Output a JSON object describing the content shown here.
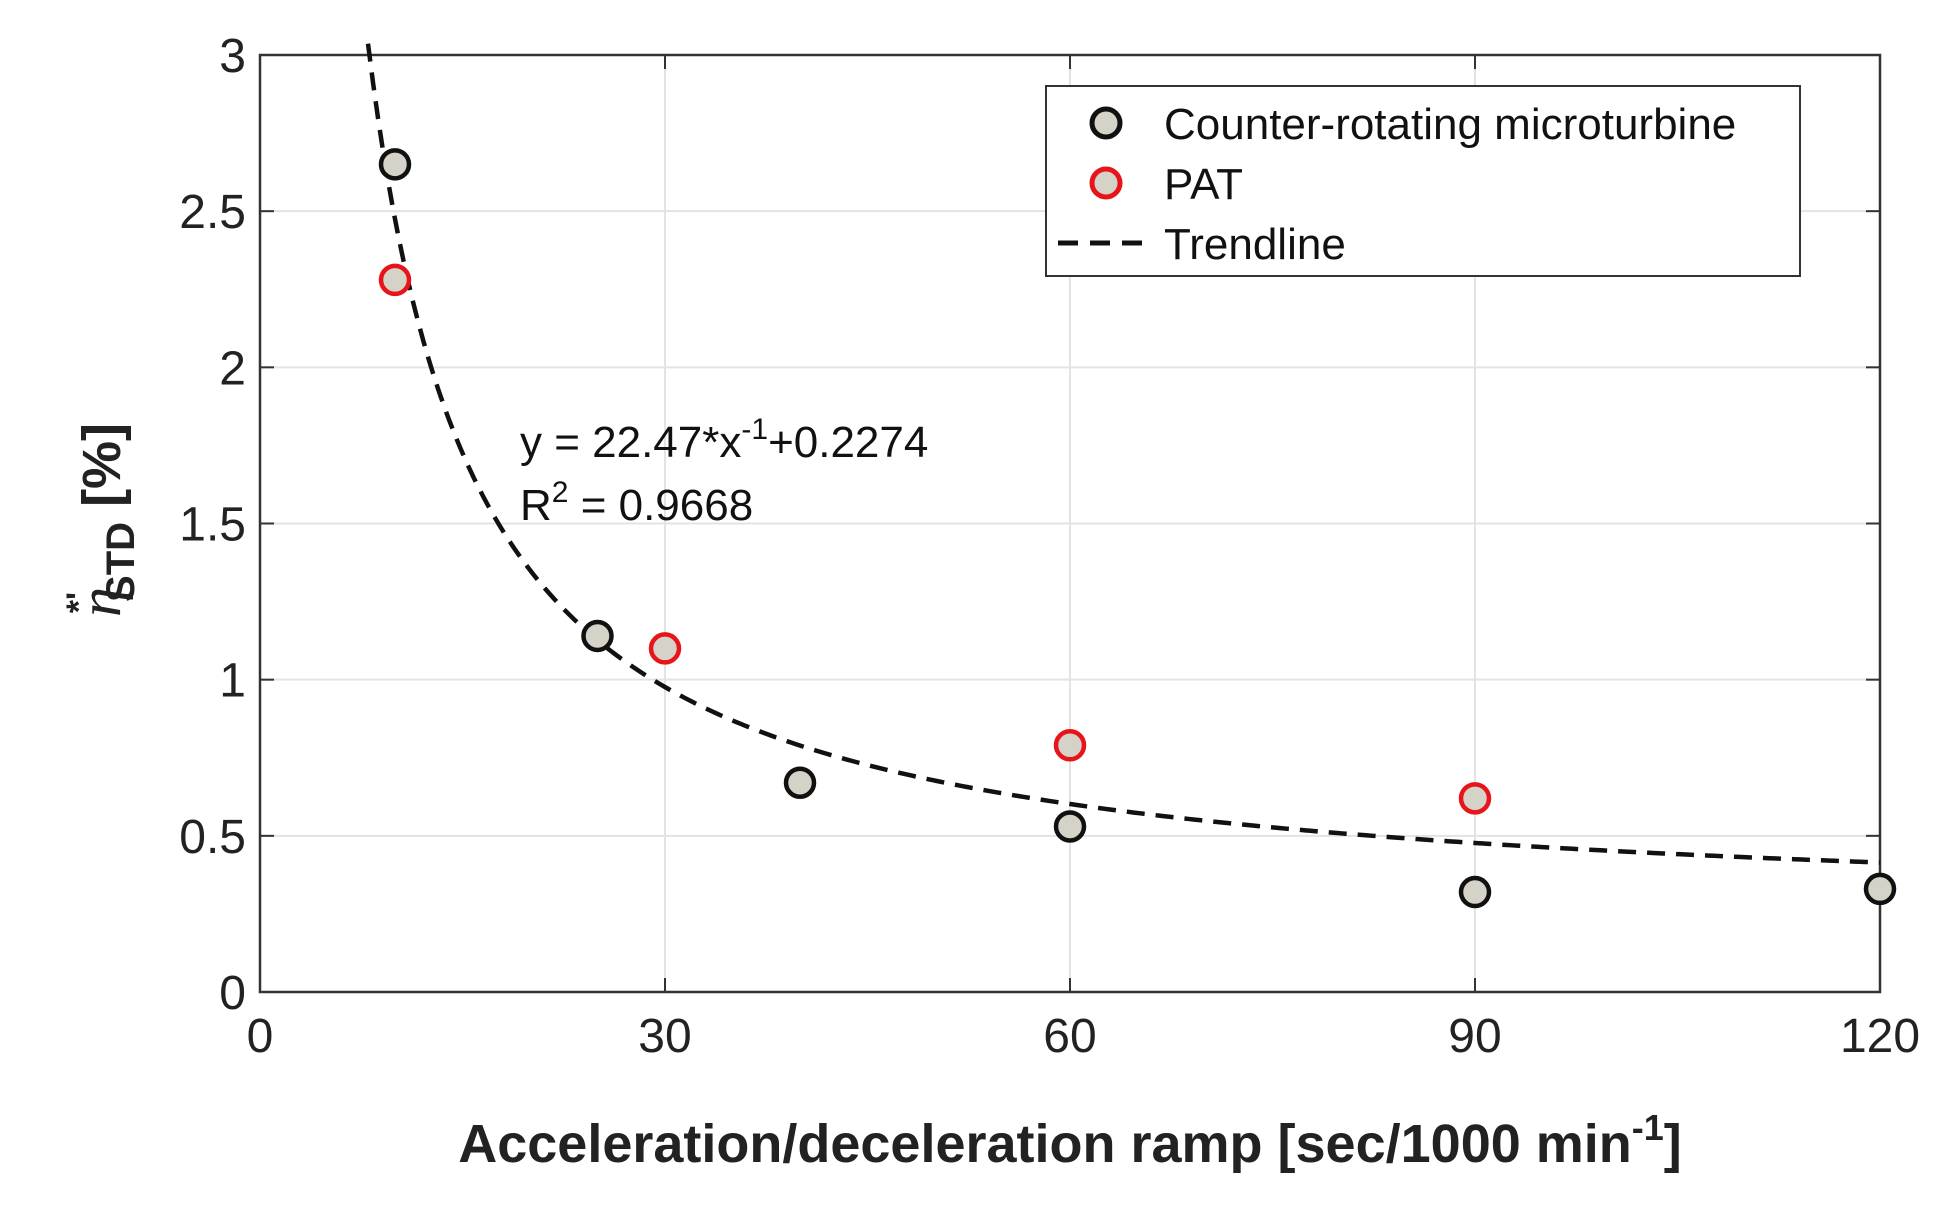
{
  "chart_data": {
    "type": "scatter",
    "title": "",
    "xlabel_main": "Acceleration/deceleration ramp [sec/1000 min",
    "xlabel_sup": "-1",
    "xlabel_close": "]",
    "ylabel_eta": "η",
    "ylabel_sup": "*'",
    "ylabel_sub": "STD",
    "ylabel_unit": " [%]",
    "xlim": [
      0,
      120
    ],
    "ylim": [
      0,
      3
    ],
    "x_ticks": [
      0,
      30,
      60,
      90,
      120
    ],
    "y_ticks": [
      0,
      0.5,
      1,
      1.5,
      2,
      2.5,
      3
    ],
    "x_tick_labels": [
      "0",
      "30",
      "60",
      "90",
      "120"
    ],
    "y_tick_labels": [
      "0",
      "0.5",
      "1",
      "1.5",
      "2",
      "2.5",
      "3"
    ],
    "grid": true,
    "legend_position": "top-right",
    "series": [
      {
        "name": "Counter-rotating microturbine",
        "marker_edge": "#111111",
        "marker_face": "#d5d2c8",
        "points": [
          {
            "x": 10,
            "y": 2.65
          },
          {
            "x": 25,
            "y": 1.14
          },
          {
            "x": 40,
            "y": 0.67
          },
          {
            "x": 60,
            "y": 0.53
          },
          {
            "x": 90,
            "y": 0.32
          },
          {
            "x": 120,
            "y": 0.33
          }
        ]
      },
      {
        "name": "PAT",
        "marker_edge": "#e8141b",
        "marker_face": "#d5d2c8",
        "points": [
          {
            "x": 10,
            "y": 2.28
          },
          {
            "x": 30,
            "y": 1.1
          },
          {
            "x": 60,
            "y": 0.79
          },
          {
            "x": 90,
            "y": 0.62
          }
        ]
      }
    ],
    "trendline": {
      "name": "Trendline",
      "a": 22.47,
      "b": 0.2274,
      "x_start": 8.0,
      "x_end": 120,
      "color": "#111111"
    },
    "annotation": {
      "eq_prefix": "y = 22.47*x",
      "eq_sup": "-1",
      "eq_suffix": "+0.2274",
      "r2_prefix": "R",
      "r2_sup": "2",
      "r2_suffix": " = 0.9668"
    }
  }
}
